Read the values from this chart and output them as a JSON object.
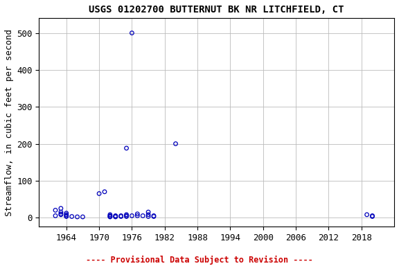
{
  "title": "USGS 01202700 BUTTERNUT BK NR LITCHFIELD, CT",
  "ylabel": "Streamflow, in cubic feet per second",
  "footer": "---- Provisional Data Subject to Revision ----",
  "x_years": [
    1962,
    1962,
    1963,
    1963,
    1963,
    1963,
    1964,
    1964,
    1964,
    1964,
    1965,
    1966,
    1967,
    1970,
    1971,
    1972,
    1972,
    1972,
    1972,
    1973,
    1973,
    1973,
    1974,
    1974,
    1975,
    1975,
    1975,
    1975,
    1976,
    1976,
    1977,
    1977,
    1978,
    1979,
    1979,
    1979,
    1980,
    1980,
    1984,
    2019,
    2020,
    2020
  ],
  "y_values": [
    5,
    20,
    8,
    15,
    25,
    10,
    8,
    12,
    5,
    3,
    3,
    2,
    2,
    65,
    70,
    5,
    8,
    3,
    2,
    5,
    3,
    2,
    5,
    3,
    5,
    188,
    3,
    8,
    500,
    5,
    5,
    10,
    5,
    15,
    8,
    3,
    5,
    3,
    200,
    8,
    5,
    3
  ],
  "marker_color": "#0000bb",
  "marker_size": 4,
  "xlim": [
    1959,
    2024
  ],
  "ylim": [
    -25,
    540
  ],
  "xticks": [
    1964,
    1970,
    1976,
    1982,
    1988,
    1994,
    2000,
    2006,
    2012,
    2018
  ],
  "yticks": [
    0,
    100,
    200,
    300,
    400,
    500
  ],
  "grid_color": "#bbbbbb",
  "background_color": "#ffffff",
  "title_fontsize": 10,
  "tick_fontsize": 9,
  "ylabel_fontsize": 9,
  "footer_color": "#cc0000",
  "footer_fontsize": 8.5
}
